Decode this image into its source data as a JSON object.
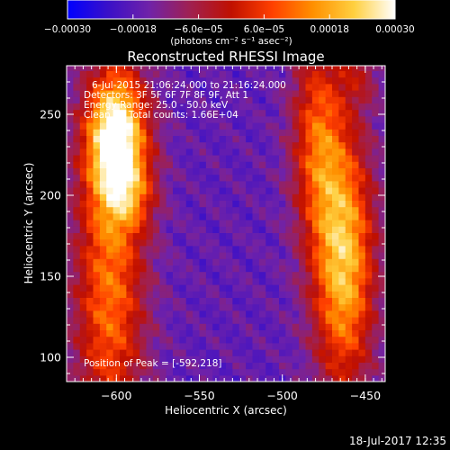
{
  "chart_data": {
    "type": "heatmap",
    "title": "Reconstructed RHESSI Image",
    "xlabel": "Heliocentric X (arcsec)",
    "ylabel": "Heliocentric Y (arcsec)",
    "xlim": [
      -630,
      -438
    ],
    "ylim": [
      85,
      280
    ],
    "x_ticks": [
      -600,
      -550,
      -500,
      -450
    ],
    "x_tick_labels": [
      "−600",
      "−550",
      "−500",
      "−450"
    ],
    "y_ticks": [
      100,
      150,
      200,
      250
    ],
    "y_tick_labels": [
      "100",
      "150",
      "200",
      "250"
    ],
    "colorbar": {
      "min": -0.0003,
      "max": 0.0003,
      "ticks": [
        -0.0003,
        -0.00018,
        -6e-05,
        6e-05,
        0.00018,
        0.0003
      ],
      "tick_labels": [
        "−0.00030",
        "−0.00018",
        "−6.0e−05",
        "6.0e−05",
        "0.00018",
        "0.00030"
      ],
      "unit_label": "(photons cm⁻² s⁻¹ asec⁻²)",
      "colormap": [
        "#0000ff",
        "#3a10c8",
        "#7022a8",
        "#a02050",
        "#c01000",
        "#ff4000",
        "#ff9000",
        "#ffd040",
        "#ffffff"
      ]
    },
    "annotations": {
      "time_range": "6-Jul-2015 21:06:24.000 to 21:16:24.000",
      "detectors": "Detectors: 3F 5F 6F 7F 8F 9F, Att 1",
      "energy_range": "Energy Range: 25.0 - 50.0 keV",
      "method_counts": "Clean      Total counts: 1.66E+04",
      "peak_position": "Position of Peak = [-592,218]"
    },
    "peak": [
      -592,
      218
    ],
    "grid": false,
    "pixel_size_arcsec": 4,
    "sources": [
      {
        "x": -600,
        "y": 236,
        "sx": 13,
        "sy": 30,
        "amp": 1.0
      },
      {
        "x": -604,
        "y": 140,
        "sx": 15,
        "sy": 65,
        "amp": 0.6
      },
      {
        "x": -590,
        "y": 200,
        "sx": 10,
        "sy": 15,
        "amp": 0.25
      },
      {
        "x": -463,
        "y": 160,
        "sx": 13,
        "sy": 55,
        "amp": 0.82
      },
      {
        "x": -479,
        "y": 236,
        "sx": 11,
        "sy": 45,
        "amp": 0.5
      },
      {
        "x": -454,
        "y": 275,
        "sx": 9,
        "sy": 14,
        "amp": 0.22
      }
    ]
  },
  "footer": {
    "timestamp": "18-Jul-2017 12:35"
  }
}
